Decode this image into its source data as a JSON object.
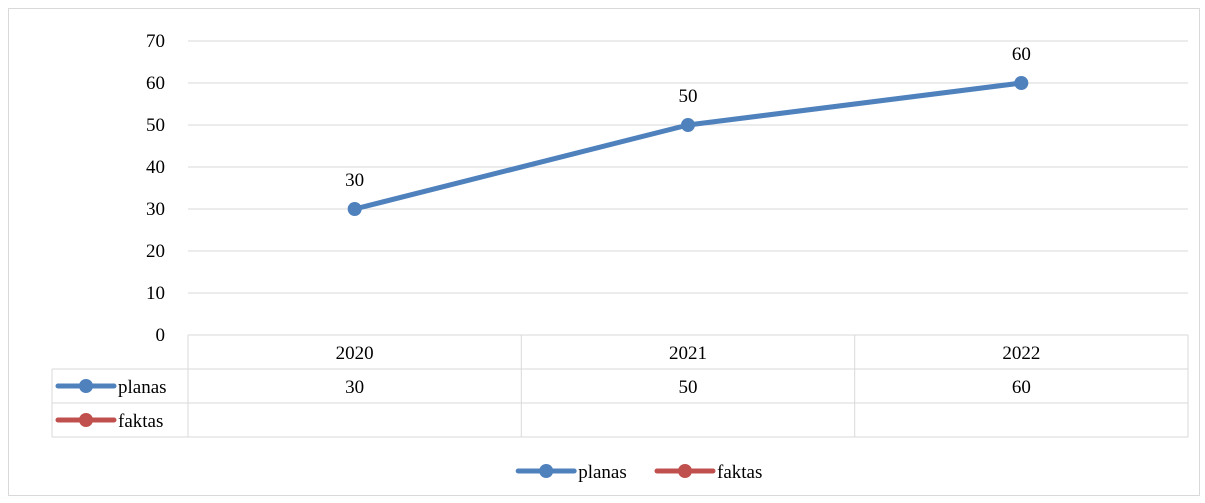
{
  "chart_data": {
    "type": "line",
    "categories": [
      "2020",
      "2021",
      "2022"
    ],
    "series": [
      {
        "name": "planas",
        "values": [
          30,
          50,
          60
        ],
        "color": "#4f81bd"
      },
      {
        "name": "faktas",
        "values": [
          null,
          null,
          null
        ],
        "color": "#c0504d"
      }
    ],
    "ylim": [
      0,
      70
    ],
    "yticks": [
      0,
      10,
      20,
      30,
      40,
      50,
      60,
      70
    ],
    "grid": true,
    "data_labels": true,
    "data_table": true,
    "legend": "bottom"
  }
}
